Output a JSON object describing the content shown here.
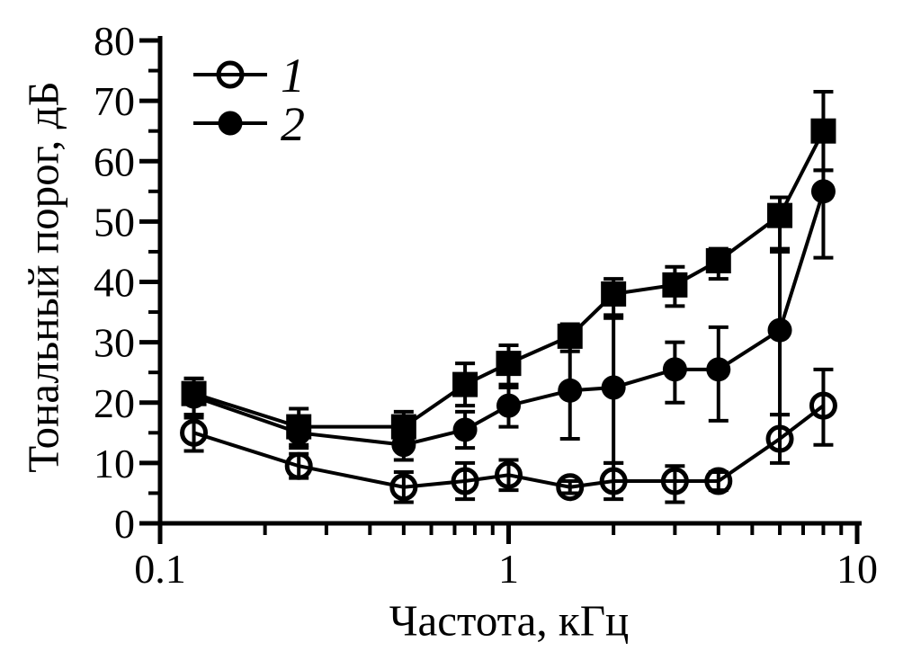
{
  "figure": {
    "background": "#ffffff",
    "ink_color": "#000000"
  },
  "chart_data": {
    "type": "line",
    "title": "",
    "xlabel": "Частота, кГц",
    "ylabel": "Тональный порог, дБ",
    "grid": false,
    "x_axis": {
      "scale": "log",
      "range": [
        0.1,
        10
      ],
      "major_ticks": [
        0.1,
        1,
        10
      ],
      "major_tick_labels": [
        "0.1",
        "1",
        "10"
      ],
      "minor_ticks": [
        0.2,
        0.3,
        0.4,
        0.5,
        0.6,
        0.7,
        0.8,
        0.9,
        2,
        3,
        4,
        5,
        6,
        7,
        8,
        9
      ]
    },
    "y_axis": {
      "scale": "linear",
      "range": [
        0,
        80
      ],
      "major_ticks": [
        0,
        10,
        20,
        30,
        40,
        50,
        60,
        70,
        80
      ],
      "major_tick_labels": [
        "0",
        "10",
        "20",
        "30",
        "40",
        "50",
        "60",
        "70",
        "80"
      ],
      "minor_ticks": [
        5,
        15,
        25,
        35,
        45,
        55,
        65,
        75
      ]
    },
    "x": [
      0.125,
      0.25,
      0.5,
      0.75,
      1,
      1.5,
      2,
      3,
      4,
      6,
      8
    ],
    "series": [
      {
        "name": "1",
        "marker": "open-circle",
        "in_legend": true,
        "values": [
          15,
          9.5,
          6,
          7,
          8,
          6,
          7,
          7,
          7,
          14,
          19.5
        ],
        "errors": [
          [
            12,
            18
          ],
          [
            7.5,
            11.5
          ],
          [
            3.5,
            8.5
          ],
          [
            4,
            10
          ],
          [
            5.5,
            10.5
          ],
          [
            5,
            7
          ],
          [
            4,
            10
          ],
          [
            3.5,
            9.5
          ],
          [
            5.5,
            8.5
          ],
          [
            10,
            18
          ],
          [
            13,
            25.5
          ]
        ]
      },
      {
        "name": "2",
        "marker": "filled-circle",
        "in_legend": true,
        "values": [
          21,
          15,
          13,
          15.5,
          19.5,
          22,
          22.5,
          25.5,
          25.5,
          32,
          55
        ],
        "errors": [
          [
            18,
            24
          ],
          [
            12.5,
            17.5
          ],
          [
            10.5,
            15.5
          ],
          [
            12.5,
            18.5
          ],
          [
            16,
            23
          ],
          [
            14,
            30
          ],
          [
            10,
            34
          ],
          [
            20,
            30
          ],
          [
            17,
            32.5
          ],
          [
            18,
            45
          ],
          [
            44,
            58.5
          ]
        ]
      },
      {
        "name": "",
        "marker": "filled-square",
        "in_legend": false,
        "values": [
          21.5,
          16,
          16,
          23,
          26.5,
          31,
          38,
          39.5,
          43.5,
          51,
          65
        ],
        "errors": [
          [
            17.5,
            24
          ],
          [
            13,
            19
          ],
          [
            13,
            18.5
          ],
          [
            19.5,
            26.5
          ],
          [
            22.5,
            29.5
          ],
          [
            28.5,
            33
          ],
          [
            34.5,
            40.5
          ],
          [
            36,
            42.5
          ],
          [
            40.5,
            45.5
          ],
          [
            45.5,
            54
          ],
          [
            58.5,
            71.5
          ]
        ]
      }
    ],
    "legend": {
      "position": "top-left",
      "entries": [
        {
          "label": "1",
          "marker": "open-circle"
        },
        {
          "label": "2",
          "marker": "filled-circle"
        }
      ]
    }
  }
}
